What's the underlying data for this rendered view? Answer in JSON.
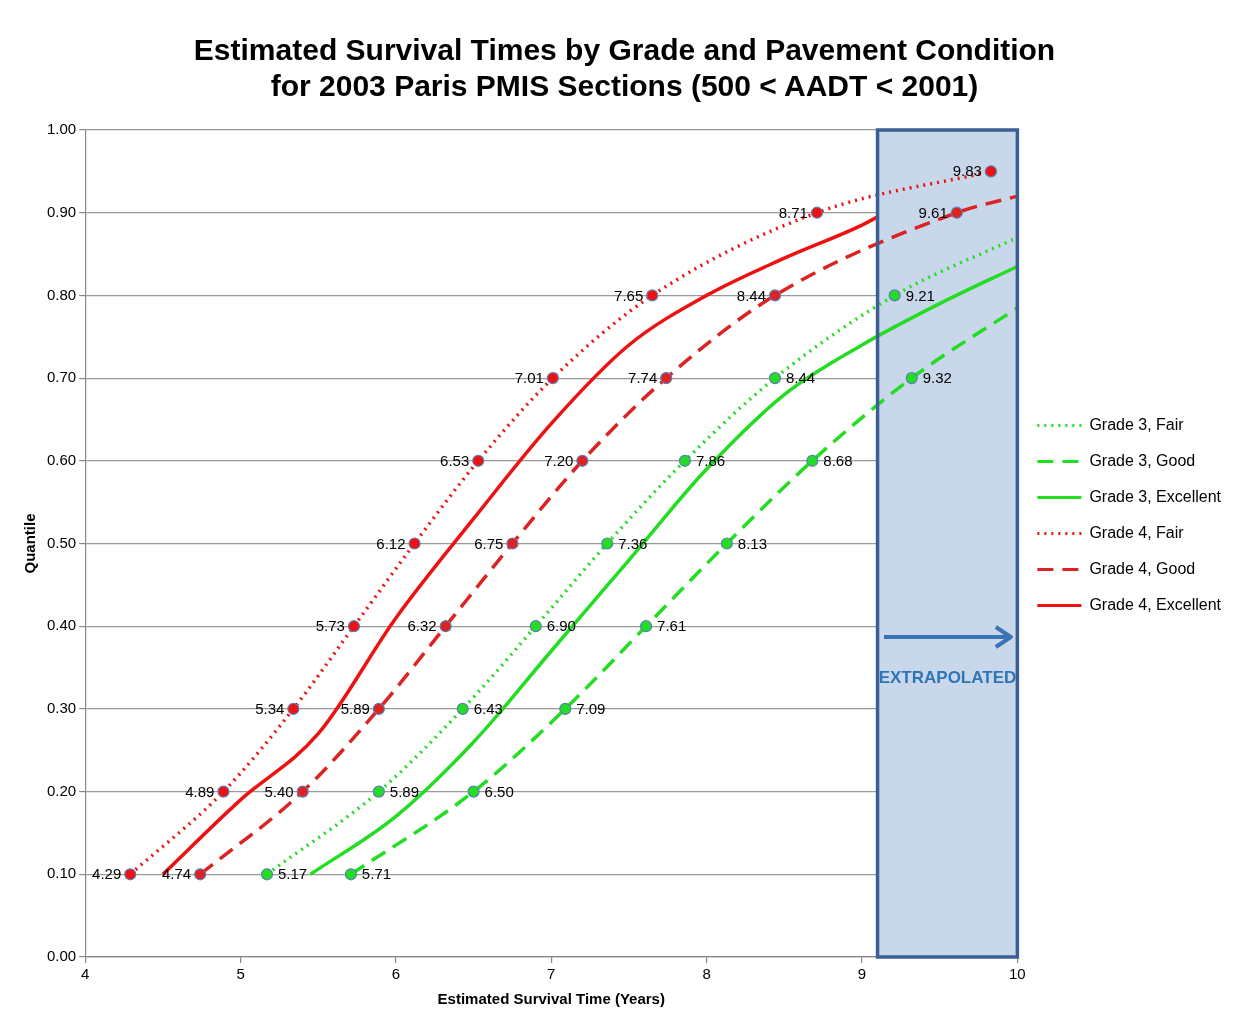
{
  "chart_data": {
    "type": "line",
    "title": "Estimated Survival Times by Grade and Pavement Condition\nfor 2003 Paris PMIS Sections (500 < AADT < 2001)",
    "xlabel": "Estimated Survival Time (Years)",
    "ylabel": "Quantile",
    "xlim": [
      4,
      10
    ],
    "xticks": [
      4,
      5,
      6,
      7,
      8,
      9,
      10
    ],
    "ylim": [
      0,
      1
    ],
    "yticks": [
      {
        "value": 0,
        "label": "0.00"
      },
      {
        "value": 0.1,
        "label": "0.10"
      },
      {
        "value": 0.2,
        "label": "0.20"
      },
      {
        "value": 0.3,
        "label": "0.30"
      },
      {
        "value": 0.4,
        "label": "0.40"
      },
      {
        "value": 0.5,
        "label": "0.50"
      },
      {
        "value": 0.6,
        "label": "0.60"
      },
      {
        "value": 0.7,
        "label": "0.70"
      },
      {
        "value": 0.8,
        "label": "0.80"
      },
      {
        "value": 0.9,
        "label": "0.90"
      },
      {
        "value": 1,
        "label": "1.00"
      }
    ],
    "grid": "y",
    "legend": "right",
    "bands": [
      {
        "axis": "x",
        "from": 9.1,
        "to": 10,
        "label": "EXTRAPOLATED",
        "color": "#c9d7ea"
      }
    ],
    "series": [
      {
        "name": "Grade 3, Fair",
        "color": "#22dd22",
        "line_style": "dotted",
        "marker": "circle",
        "x": [
          5.17,
          5.89,
          6.43,
          6.9,
          7.36,
          7.86,
          8.44,
          9.21,
          10
        ],
        "values": [
          0.1,
          0.2,
          0.3,
          0.4,
          0.5,
          0.6,
          0.7,
          0.8,
          0.87
        ]
      },
      {
        "name": "Grade 3, Good",
        "color": "#22dd22",
        "line_style": "dashed",
        "marker": "circle",
        "x": [
          5.71,
          6.5,
          7.09,
          7.61,
          8.13,
          8.68,
          9.32,
          10
        ],
        "values": [
          0.1,
          0.2,
          0.3,
          0.4,
          0.5,
          0.6,
          0.7,
          0.785
        ]
      },
      {
        "name": "Grade 3, Excellent",
        "color": "#22dd22",
        "line_style": "solid",
        "marker": "none",
        "x": [
          5.45,
          6,
          6.5,
          7,
          7.5,
          8,
          8.5,
          9,
          9.5,
          10
        ],
        "values": [
          0.1,
          0.17,
          0.26,
          0.37,
          0.48,
          0.59,
          0.68,
          0.74,
          0.79,
          0.835
        ]
      },
      {
        "name": "Grade 4, Fair",
        "color": "#ee1111",
        "line_style": "dotted",
        "marker": "circle",
        "x": [
          4.29,
          4.89,
          5.34,
          5.73,
          6.12,
          6.53,
          7.01,
          7.65,
          8.71,
          9.83
        ],
        "values": [
          0.1,
          0.2,
          0.3,
          0.4,
          0.5,
          0.6,
          0.7,
          0.8,
          0.9,
          0.95
        ]
      },
      {
        "name": "Grade 4, Good",
        "color": "#dd2222",
        "line_style": "dashed",
        "marker": "circle",
        "x": [
          4.74,
          5.4,
          5.89,
          6.32,
          6.75,
          7.2,
          7.74,
          8.44,
          9.61,
          10
        ],
        "values": [
          0.1,
          0.2,
          0.3,
          0.4,
          0.5,
          0.6,
          0.7,
          0.8,
          0.9,
          0.92
        ]
      },
      {
        "name": "Grade 4, Excellent",
        "color": "#ee1111",
        "line_style": "solid",
        "marker": "none",
        "x": [
          4.5,
          5,
          5.5,
          6,
          6.5,
          7,
          7.5,
          8,
          8.5,
          9,
          9.1
        ],
        "values": [
          0.1,
          0.19,
          0.27,
          0.41,
          0.53,
          0.645,
          0.74,
          0.8,
          0.845,
          0.885,
          0.895
        ]
      }
    ],
    "annotations": [
      {
        "text": "5.17",
        "x": 5.17,
        "y": 0.1
      },
      {
        "text": "5.89",
        "x": 5.89,
        "y": 0.2
      },
      {
        "text": "6.43",
        "x": 6.43,
        "y": 0.3
      },
      {
        "text": "6.90",
        "x": 6.9,
        "y": 0.4
      },
      {
        "text": "7.36",
        "x": 7.36,
        "y": 0.5
      },
      {
        "text": "7.86",
        "x": 7.86,
        "y": 0.6
      },
      {
        "text": "8.44",
        "x": 8.44,
        "y": 0.7
      },
      {
        "text": "9.21",
        "x": 9.21,
        "y": 0.8
      },
      {
        "text": "5.71",
        "x": 5.71,
        "y": 0.1
      },
      {
        "text": "6.50",
        "x": 6.5,
        "y": 0.2
      },
      {
        "text": "7.09",
        "x": 7.09,
        "y": 0.3
      },
      {
        "text": "7.61",
        "x": 7.61,
        "y": 0.4
      },
      {
        "text": "8.13",
        "x": 8.13,
        "y": 0.5
      },
      {
        "text": "8.68",
        "x": 8.68,
        "y": 0.6
      },
      {
        "text": "9.32",
        "x": 9.32,
        "y": 0.7
      },
      {
        "text": "4.29",
        "x": 4.29,
        "y": 0.1
      },
      {
        "text": "4.89",
        "x": 4.89,
        "y": 0.2
      },
      {
        "text": "5.34",
        "x": 5.34,
        "y": 0.3
      },
      {
        "text": "5.73",
        "x": 5.73,
        "y": 0.4
      },
      {
        "text": "6.12",
        "x": 6.12,
        "y": 0.5
      },
      {
        "text": "6.53",
        "x": 6.53,
        "y": 0.6
      },
      {
        "text": "7.01",
        "x": 7.01,
        "y": 0.7
      },
      {
        "text": "7.65",
        "x": 7.65,
        "y": 0.8
      },
      {
        "text": "8.71",
        "x": 8.71,
        "y": 0.9
      },
      {
        "text": "9.83",
        "x": 9.83,
        "y": 0.95
      },
      {
        "text": "4.74",
        "x": 4.74,
        "y": 0.1
      },
      {
        "text": "5.40",
        "x": 5.4,
        "y": 0.2
      },
      {
        "text": "5.89",
        "x": 5.89,
        "y": 0.3
      },
      {
        "text": "6.32",
        "x": 6.32,
        "y": 0.4
      },
      {
        "text": "6.75",
        "x": 6.75,
        "y": 0.5
      },
      {
        "text": "7.20",
        "x": 7.2,
        "y": 0.6
      },
      {
        "text": "7.74",
        "x": 7.74,
        "y": 0.7
      },
      {
        "text": "8.44",
        "x": 8.44,
        "y": 0.8
      },
      {
        "text": "9.61",
        "x": 9.61,
        "y": 0.9
      }
    ]
  }
}
